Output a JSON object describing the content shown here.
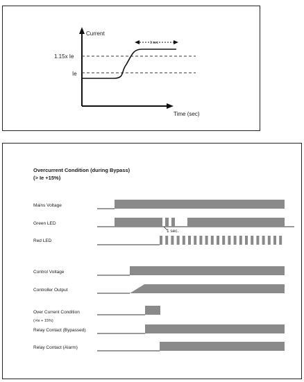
{
  "current_diagram": {
    "y_axis_label": "Current",
    "x_axis_label": "Time (sec)",
    "level_high_label": "1.15x  Ie",
    "level_nominal_label": "Ie",
    "interval_label": "1 sec"
  },
  "timing_diagram": {
    "title_line1": "Overcurrent Condition (during Bypass)",
    "title_line2": "(> Ie +15%)",
    "rows": [
      {
        "label": "Mains Voltage"
      },
      {
        "label": "Green LED"
      },
      {
        "label": "Red LED"
      },
      {
        "label": "Control Voltage"
      },
      {
        "label": "Controller Output"
      },
      {
        "label": "Over Current Condition"
      },
      {
        "label": "Relay Contact (Bypassed)"
      },
      {
        "label": "Relay Contact (Alarm)"
      }
    ],
    "over_current_sub_label": "(>Ie + 15%)",
    "interval_label": "1 sec.",
    "bar_color": "#8a8a8a"
  }
}
